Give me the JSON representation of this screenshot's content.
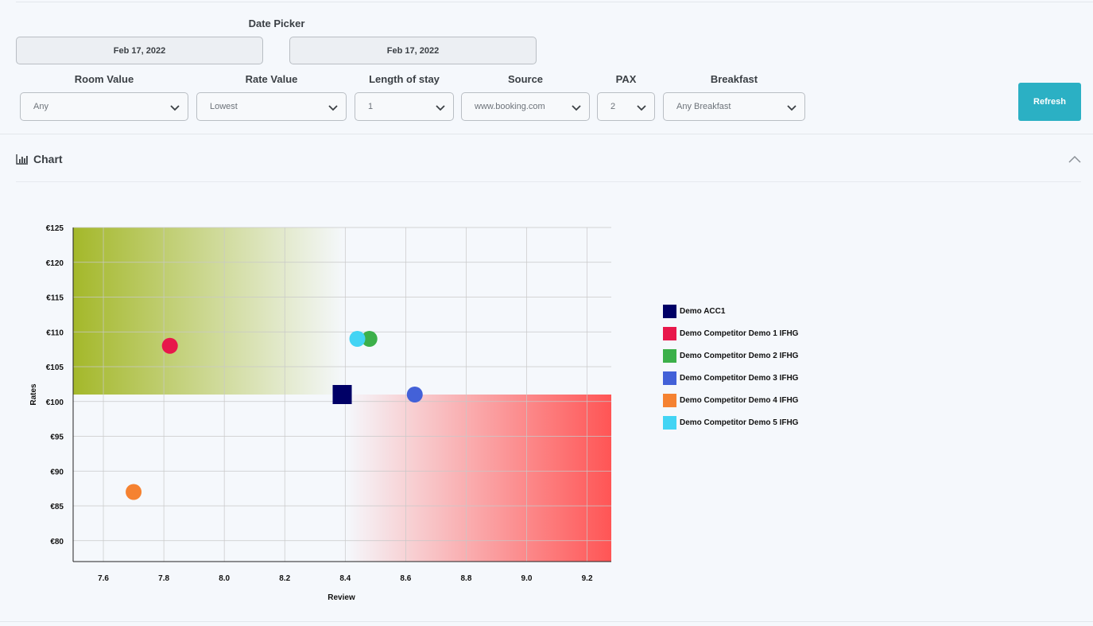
{
  "date_picker": {
    "title": "Date Picker",
    "start": "Feb 17, 2022",
    "end": "Feb 17, 2022"
  },
  "filters": [
    {
      "label": "Room Value",
      "value": "Any"
    },
    {
      "label": "Rate Value",
      "value": "Lowest"
    },
    {
      "label": "Length of stay",
      "value": "1"
    },
    {
      "label": "Source",
      "value": "www.booking.com"
    },
    {
      "label": "PAX",
      "value": "2"
    },
    {
      "label": "Breakfast",
      "value": "Any Breakfast"
    }
  ],
  "refresh_label": "Refresh",
  "icons": {
    "chart": "bar-chart-icon",
    "collapse": "chevron-up-icon",
    "dropdown": "chevron-down-icon"
  },
  "section": {
    "title": "Chart"
  },
  "chart_data": {
    "type": "scatter",
    "xlabel": "Review",
    "ylabel": "Rates",
    "xlim": [
      7.5,
      9.28
    ],
    "ylim": [
      77,
      125
    ],
    "x_ticks": [
      "7.6",
      "7.8",
      "8.0",
      "8.2",
      "8.4",
      "8.6",
      "8.8",
      "9.0",
      "9.2"
    ],
    "y_ticks": [
      "€125",
      "€120",
      "€115",
      "€110",
      "€105",
      "€100",
      "€95",
      "€90",
      "€85",
      "€80"
    ],
    "grid": true,
    "legend_position": "right",
    "quadrants": {
      "reference_x": 8.4,
      "reference_y": 101,
      "good_color": "#a4b82a",
      "bad_color": "#ff5555"
    },
    "series": [
      {
        "name": "Demo ACC1",
        "color": "#000066",
        "marker": "square",
        "x": 8.39,
        "y": 101
      },
      {
        "name": "Demo Competitor Demo 1 IFHG",
        "color": "#e8174b",
        "marker": "circle",
        "x": 7.82,
        "y": 108
      },
      {
        "name": "Demo Competitor Demo 2 IFHG",
        "color": "#3cb04a",
        "marker": "circle",
        "x": 8.48,
        "y": 109
      },
      {
        "name": "Demo Competitor Demo 3 IFHG",
        "color": "#4361d8",
        "marker": "circle",
        "x": 8.63,
        "y": 101
      },
      {
        "name": "Demo Competitor Demo 4 IFHG",
        "color": "#f58231",
        "marker": "circle",
        "x": 7.7,
        "y": 87
      },
      {
        "name": "Demo Competitor Demo 5 IFHG",
        "color": "#42d4f4",
        "marker": "circle",
        "x": 8.44,
        "y": 109
      }
    ]
  }
}
